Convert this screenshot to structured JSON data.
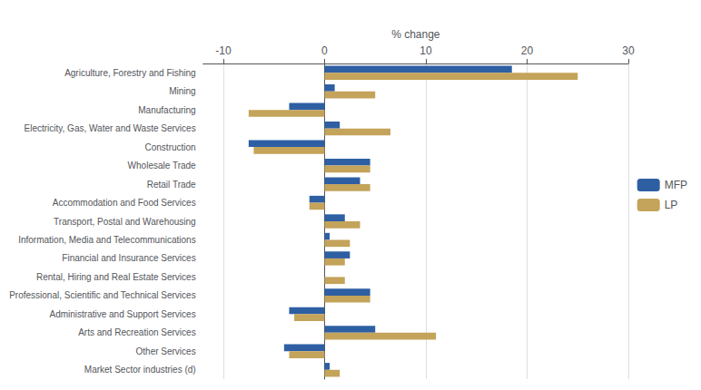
{
  "chart_data": {
    "type": "bar",
    "orientation": "horizontal",
    "xlabel": "% change",
    "categories": [
      "Agriculture, Forestry and Fishing",
      "Mining",
      "Manufacturing",
      "Electricity, Gas, Water and Waste Services",
      "Construction",
      "Wholesale Trade",
      "Retail Trade",
      "Accommodation and Food Services",
      "Transport, Postal and Warehousing",
      "Information, Media and Telecommunications",
      "Financial and Insurance Services",
      "Rental, Hiring and Real Estate Services",
      "Professional, Scientific and Technical Services",
      "Administrative and Support Services",
      "Arts and Recreation Services",
      "Other Services",
      "Market Sector industries (d)"
    ],
    "series": [
      {
        "name": "MFP",
        "color": "#2E5FA3",
        "values": [
          18.5,
          1.0,
          -3.5,
          1.5,
          -7.5,
          4.5,
          3.5,
          -1.5,
          2.0,
          0.5,
          2.5,
          0.0,
          4.5,
          -3.5,
          5.0,
          -4.0,
          0.5
        ]
      },
      {
        "name": "LP",
        "color": "#C4A35A",
        "values": [
          25.0,
          5.0,
          -7.5,
          6.5,
          -7.0,
          4.5,
          4.5,
          -1.5,
          3.5,
          2.5,
          2.0,
          2.0,
          4.5,
          -3.0,
          11.0,
          -3.5,
          1.5
        ]
      }
    ],
    "xlim": [
      -12,
      30
    ],
    "xticks": [
      -10,
      0,
      10,
      20,
      30
    ],
    "grid": true,
    "legend": "right"
  }
}
